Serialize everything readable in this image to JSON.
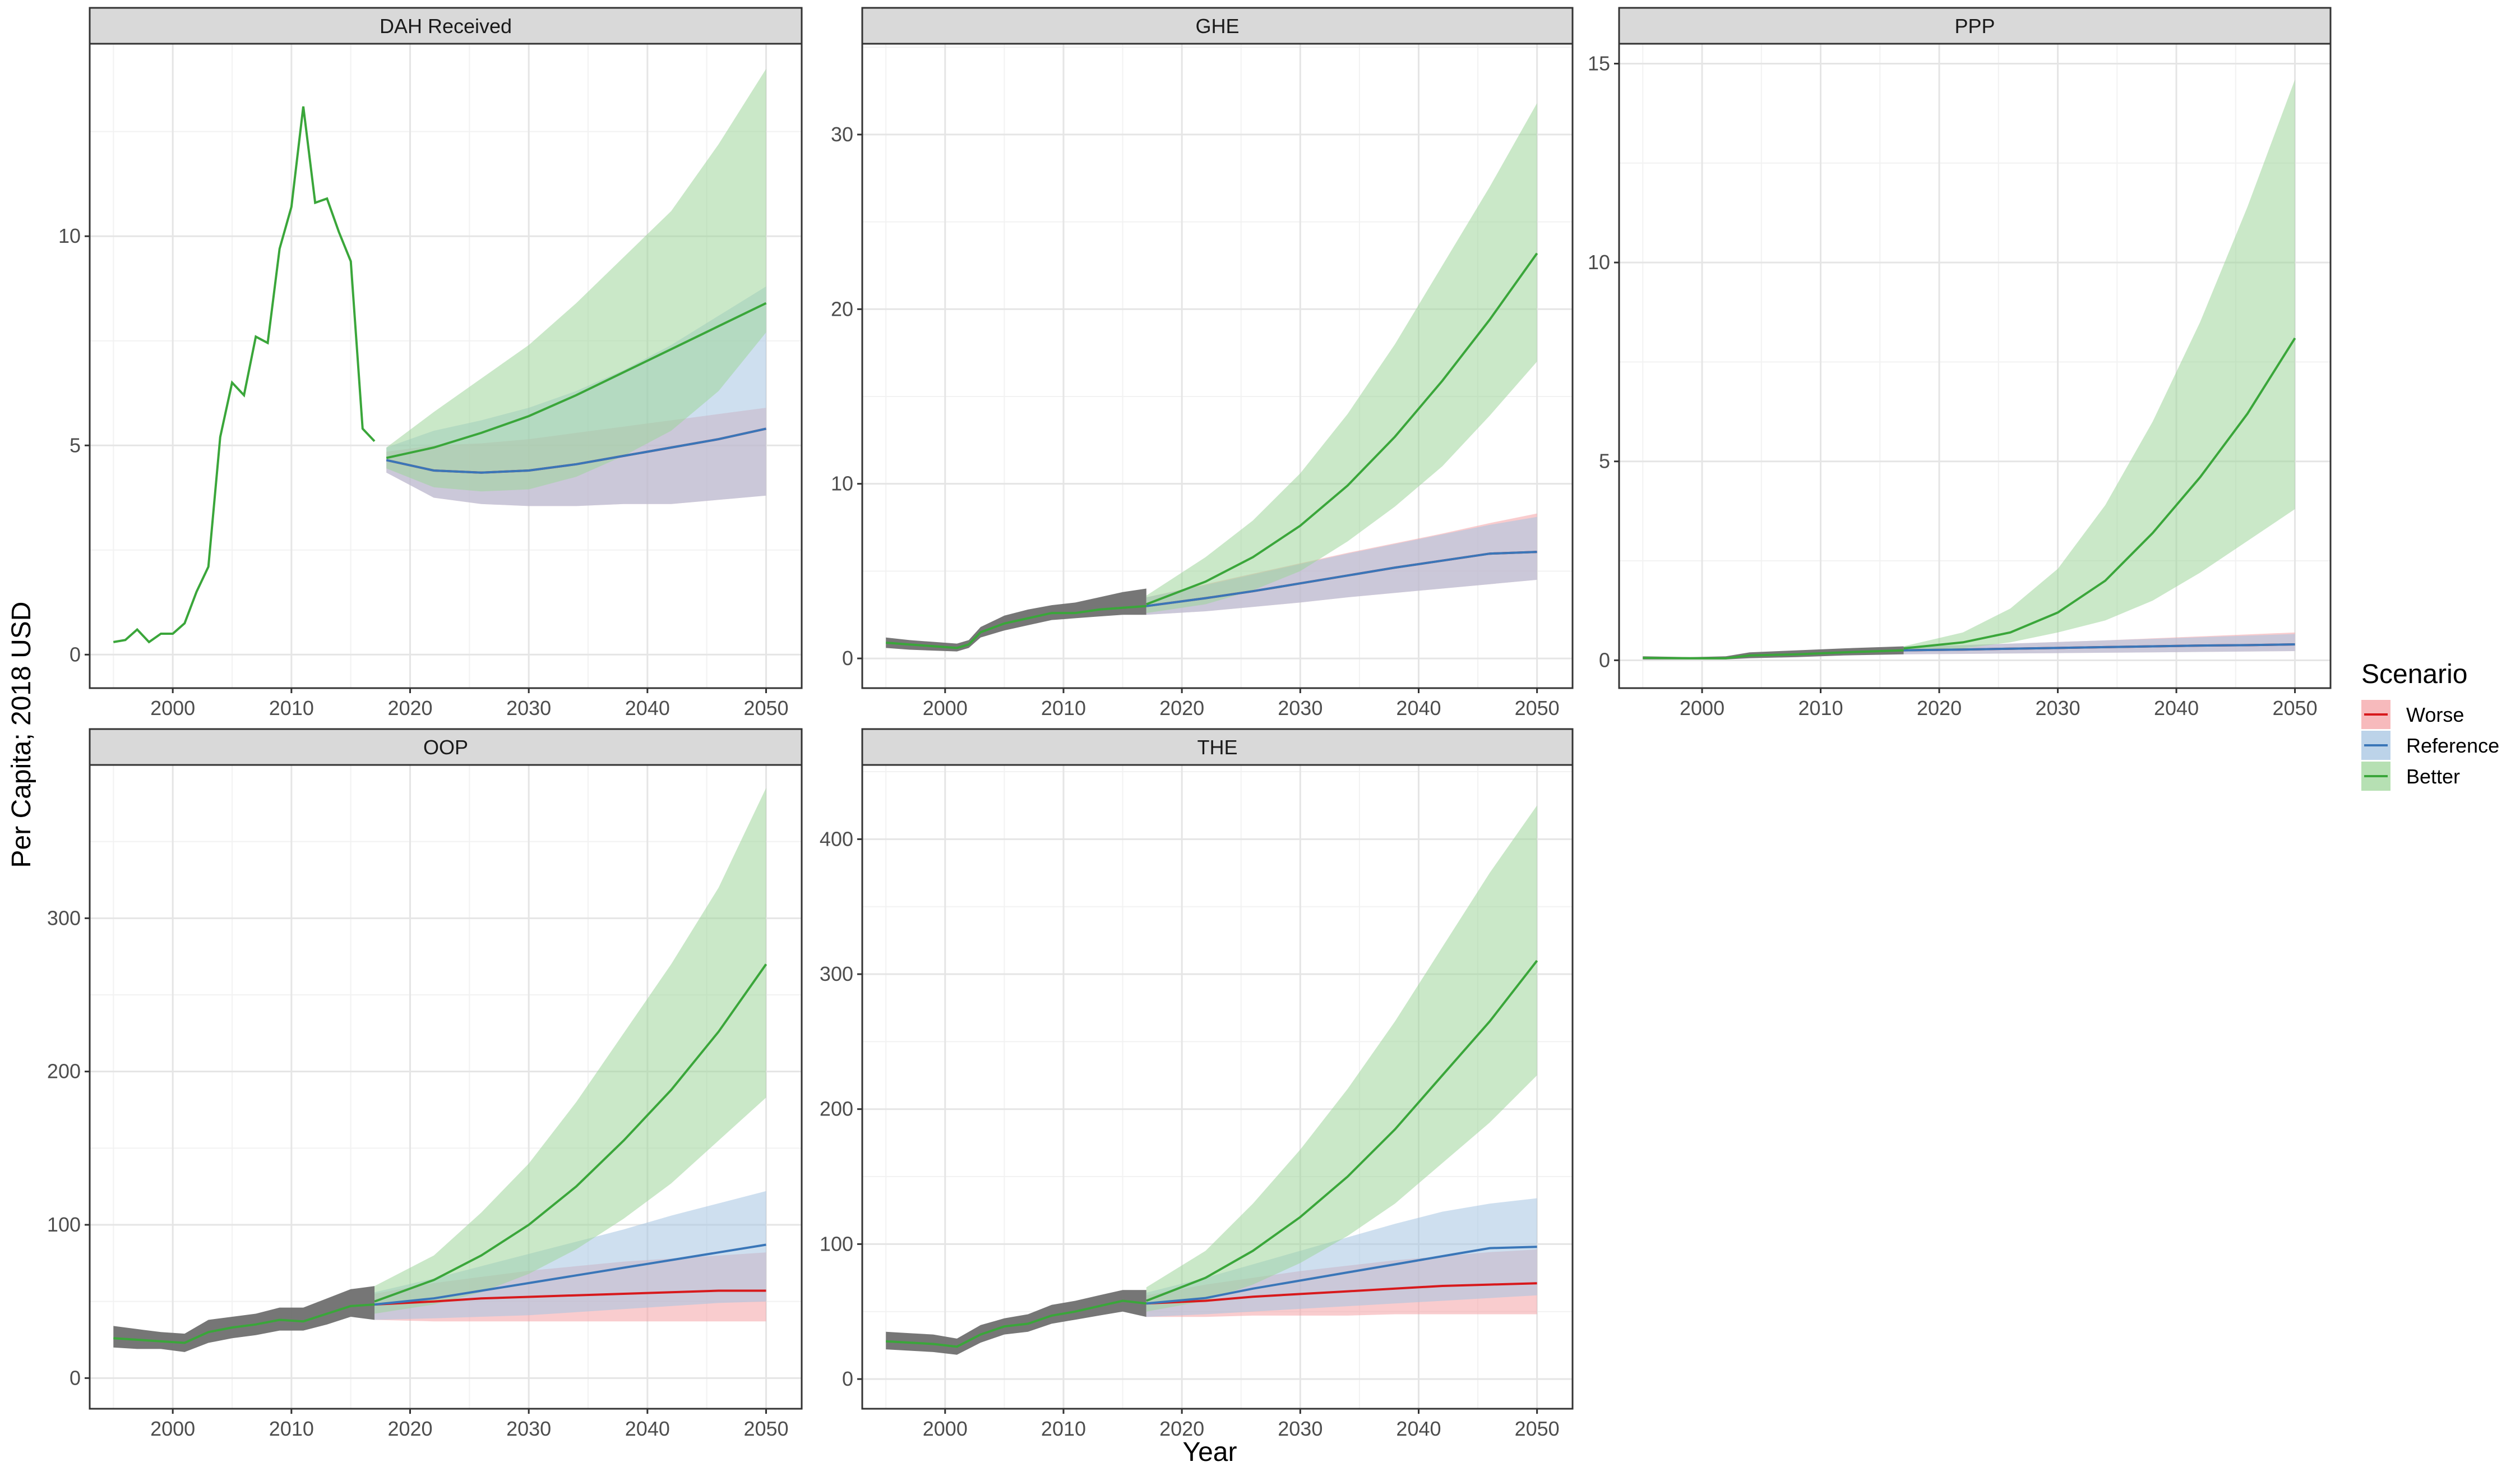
{
  "chart_data": {
    "type": "line",
    "xlabel": "Year",
    "ylabel": "Per Capita; 2018 USD",
    "xlim": [
      1993,
      2053
    ],
    "x_ticks": [
      2000,
      2010,
      2020,
      2030,
      2040,
      2050
    ],
    "legend": {
      "title": "Scenario",
      "position": "right",
      "entries": [
        {
          "name": "Worse",
          "line": "#d7191c",
          "fill": "#f4a3a5"
        },
        {
          "name": "Reference",
          "line": "#3a76b8",
          "fill": "#a6c4e2"
        },
        {
          "name": "Better",
          "line": "#3aa63a",
          "fill": "#9ed69a"
        }
      ]
    },
    "colors": {
      "grey_band": "#6f6f6f",
      "strip_bg": "#d9d9d9"
    },
    "panels": [
      {
        "title": "DAH Received",
        "ylim": [
          -0.8,
          14.6
        ],
        "y_ticks": [
          0,
          5,
          10
        ],
        "history": {
          "x": [
            1995,
            1996,
            1997,
            1998,
            1999,
            2000,
            2001,
            2002,
            2003,
            2004,
            2005,
            2006,
            2007,
            2008,
            2009,
            2010,
            2011,
            2012,
            2013,
            2014,
            2015,
            2016,
            2017
          ],
          "y": [
            0.3,
            0.35,
            0.6,
            0.3,
            0.5,
            0.5,
            0.75,
            1.5,
            2.1,
            5.2,
            6.5,
            6.2,
            7.6,
            7.45,
            9.7,
            10.7,
            13.1,
            10.8,
            10.9,
            10.1,
            9.4,
            5.4,
            5.1
          ]
        },
        "forecast": {
          "x": [
            2018,
            2022,
            2026,
            2030,
            2034,
            2038,
            2042,
            2046,
            2050
          ],
          "Worse": {
            "mean": [
              4.65,
              4.4,
              4.35,
              4.4,
              4.55,
              4.75,
              4.95,
              5.15,
              5.4
            ],
            "lower": [
              4.35,
              3.75,
              3.6,
              3.55,
              3.55,
              3.6,
              3.6,
              3.7,
              3.8
            ],
            "upper": [
              4.85,
              5.0,
              5.05,
              5.15,
              5.3,
              5.45,
              5.6,
              5.75,
              5.9
            ]
          },
          "Reference": {
            "mean": [
              4.65,
              4.4,
              4.35,
              4.4,
              4.55,
              4.75,
              4.95,
              5.15,
              5.4
            ],
            "lower": [
              4.35,
              3.75,
              3.6,
              3.55,
              3.55,
              3.6,
              3.6,
              3.7,
              3.8
            ],
            "upper": [
              4.95,
              5.35,
              5.6,
              5.9,
              6.3,
              6.8,
              7.4,
              8.1,
              8.8
            ]
          },
          "Better": {
            "mean": [
              4.7,
              4.95,
              5.3,
              5.7,
              6.2,
              6.75,
              7.3,
              7.85,
              8.4
            ],
            "lower": [
              4.45,
              4.0,
              3.9,
              3.95,
              4.25,
              4.75,
              5.35,
              6.3,
              7.7
            ],
            "upper": [
              4.95,
              5.8,
              6.6,
              7.4,
              8.4,
              9.5,
              10.6,
              12.2,
              14.0
            ]
          }
        }
      },
      {
        "title": "GHE",
        "ylim": [
          -1.7,
          35.2
        ],
        "y_ticks": [
          0,
          10,
          20,
          30
        ],
        "history": {
          "x": [
            1995,
            1997,
            1999,
            2001,
            2002,
            2003,
            2005,
            2007,
            2009,
            2011,
            2013,
            2015,
            2017
          ],
          "y": [
            0.9,
            0.8,
            0.7,
            0.6,
            0.8,
            1.5,
            2.0,
            2.3,
            2.6,
            2.6,
            2.8,
            2.9,
            3.0
          ],
          "lower": [
            0.6,
            0.5,
            0.45,
            0.4,
            0.6,
            1.2,
            1.6,
            1.9,
            2.2,
            2.3,
            2.4,
            2.5,
            2.5
          ],
          "upper": [
            1.2,
            1.05,
            0.95,
            0.85,
            1.05,
            1.8,
            2.45,
            2.8,
            3.05,
            3.2,
            3.5,
            3.8,
            4.0
          ]
        },
        "forecast": {
          "x": [
            2017,
            2022,
            2026,
            2030,
            2034,
            2038,
            2042,
            2046,
            2050
          ],
          "Worse": {
            "mean": [
              3.0,
              3.45,
              3.85,
              4.3,
              4.75,
              5.2,
              5.6,
              6.0,
              6.1
            ],
            "lower": [
              2.5,
              2.7,
              2.95,
              3.2,
              3.5,
              3.75,
              4.0,
              4.25,
              4.5
            ],
            "upper": [
              3.5,
              4.25,
              4.85,
              5.45,
              6.05,
              6.6,
              7.15,
              7.75,
              8.3
            ]
          },
          "Reference": {
            "mean": [
              3.0,
              3.45,
              3.85,
              4.3,
              4.75,
              5.2,
              5.6,
              6.0,
              6.1
            ],
            "lower": [
              2.5,
              2.7,
              2.95,
              3.2,
              3.5,
              3.75,
              4.0,
              4.25,
              4.5
            ],
            "upper": [
              3.5,
              4.2,
              4.8,
              5.4,
              6.0,
              6.55,
              7.1,
              7.65,
              8.1
            ]
          },
          "Better": {
            "mean": [
              3.1,
              4.4,
              5.8,
              7.6,
              9.9,
              12.7,
              15.9,
              19.4,
              23.2
            ],
            "lower": [
              2.6,
              3.1,
              3.9,
              5.0,
              6.7,
              8.7,
              11.0,
              13.9,
              17.0
            ],
            "upper": [
              3.6,
              5.8,
              7.9,
              10.6,
              14.0,
              18.0,
              22.5,
              27.0,
              31.8
            ]
          }
        }
      },
      {
        "title": "PPP",
        "ylim": [
          -0.7,
          15.5
        ],
        "y_ticks": [
          0,
          5,
          10,
          15
        ],
        "history": {
          "x": [
            1995,
            1999,
            2002,
            2004,
            2008,
            2012,
            2017
          ],
          "y": [
            0.06,
            0.05,
            0.05,
            0.12,
            0.15,
            0.2,
            0.25
          ],
          "lower": [
            0.02,
            0.02,
            0.02,
            0.05,
            0.08,
            0.12,
            0.15
          ],
          "upper": [
            0.1,
            0.08,
            0.1,
            0.2,
            0.25,
            0.3,
            0.35
          ]
        },
        "forecast": {
          "x": [
            2017,
            2022,
            2026,
            2030,
            2034,
            2038,
            2042,
            2046,
            2050
          ],
          "Worse": {
            "mean": [
              0.25,
              0.27,
              0.29,
              0.31,
              0.33,
              0.35,
              0.37,
              0.38,
              0.4
            ],
            "lower": [
              0.15,
              0.16,
              0.17,
              0.18,
              0.19,
              0.2,
              0.21,
              0.22,
              0.23
            ],
            "upper": [
              0.35,
              0.38,
              0.42,
              0.46,
              0.5,
              0.55,
              0.6,
              0.65,
              0.7
            ]
          },
          "Reference": {
            "mean": [
              0.25,
              0.27,
              0.29,
              0.31,
              0.33,
              0.35,
              0.37,
              0.38,
              0.4
            ],
            "lower": [
              0.15,
              0.16,
              0.17,
              0.18,
              0.19,
              0.2,
              0.21,
              0.22,
              0.23
            ],
            "upper": [
              0.35,
              0.38,
              0.42,
              0.46,
              0.5,
              0.54,
              0.58,
              0.62,
              0.66
            ]
          },
          "Better": {
            "mean": [
              0.3,
              0.45,
              0.7,
              1.2,
              2.0,
              3.2,
              4.6,
              6.2,
              8.1
            ],
            "lower": [
              0.25,
              0.3,
              0.45,
              0.7,
              1.0,
              1.5,
              2.2,
              3.0,
              3.8
            ],
            "upper": [
              0.35,
              0.7,
              1.3,
              2.3,
              3.9,
              6.0,
              8.5,
              11.4,
              14.6
            ]
          }
        }
      },
      {
        "title": "OOP",
        "ylim": [
          -20,
          400
        ],
        "y_ticks": [
          0,
          100,
          200,
          300
        ],
        "history": {
          "x": [
            1995,
            1997,
            1999,
            2001,
            2003,
            2005,
            2007,
            2009,
            2011,
            2013,
            2015,
            2017
          ],
          "y": [
            26,
            25,
            24,
            23,
            30,
            33,
            35,
            38,
            37,
            42,
            47,
            48
          ],
          "lower": [
            20,
            19,
            19,
            17,
            23,
            26,
            28,
            31,
            31,
            35,
            40,
            38
          ],
          "upper": [
            34,
            32,
            30,
            29,
            38,
            40,
            42,
            46,
            46,
            52,
            58,
            60
          ]
        },
        "forecast": {
          "x": [
            2017,
            2022,
            2026,
            2030,
            2034,
            2038,
            2042,
            2046,
            2050
          ],
          "Worse": {
            "mean": [
              48,
              50,
              52,
              53,
              54,
              55,
              56,
              57,
              57
            ],
            "lower": [
              38,
              37,
              37,
              37,
              37,
              37,
              37,
              37,
              37
            ],
            "upper": [
              55,
              62,
              66,
              70,
              73,
              76,
              78,
              80,
              82
            ]
          },
          "Reference": {
            "mean": [
              48,
              52,
              57,
              62,
              67,
              72,
              77,
              82,
              87
            ],
            "lower": [
              38,
              39,
              40,
              41,
              43,
              45,
              47,
              49,
              50
            ],
            "upper": [
              56,
              65,
              73,
              81,
              89,
              97,
              106,
              114,
              122
            ]
          },
          "Better": {
            "mean": [
              50,
              64,
              80,
              100,
              125,
              155,
              188,
              226,
              270
            ],
            "lower": [
              42,
              48,
              56,
              68,
              84,
              104,
              127,
              155,
              183
            ],
            "upper": [
              60,
              80,
              108,
              140,
              180,
              225,
              270,
              320,
              385
            ]
          }
        }
      },
      {
        "title": "THE",
        "ylim": [
          -22,
          455
        ],
        "y_ticks": [
          0,
          100,
          200,
          300,
          400
        ],
        "history": {
          "x": [
            1995,
            1997,
            1999,
            2001,
            2003,
            2005,
            2007,
            2009,
            2011,
            2013,
            2015,
            2017
          ],
          "y": [
            28,
            27,
            26,
            24,
            33,
            39,
            41,
            47,
            50,
            54,
            58,
            56
          ],
          "lower": [
            22,
            21,
            20,
            18,
            27,
            33,
            35,
            41,
            44,
            47,
            50,
            46
          ],
          "upper": [
            35,
            34,
            33,
            30,
            40,
            45,
            48,
            55,
            58,
            62,
            66,
            66
          ]
        },
        "forecast": {
          "x": [
            2017,
            2022,
            2026,
            2030,
            2034,
            2038,
            2042,
            2046,
            2050
          ],
          "Worse": {
            "mean": [
              56,
              58,
              61,
              63,
              65,
              67,
              69,
              70,
              71
            ],
            "lower": [
              46,
              46,
              47,
              47,
              47,
              48,
              48,
              48,
              48
            ],
            "upper": [
              62,
              70,
              75,
              80,
              84,
              88,
              91,
              94,
              96
            ]
          },
          "Reference": {
            "mean": [
              56,
              60,
              67,
              73,
              79,
              85,
              91,
              97,
              98
            ],
            "lower": [
              46,
              48,
              50,
              52,
              54,
              56,
              58,
              60,
              62
            ],
            "upper": [
              64,
              75,
              85,
              95,
              105,
              115,
              124,
              130,
              134
            ]
          },
          "Better": {
            "mean": [
              58,
              75,
              95,
              120,
              150,
              185,
              225,
              265,
              310
            ],
            "lower": [
              50,
              58,
              70,
              86,
              106,
              130,
              160,
              190,
              225
            ],
            "upper": [
              68,
              95,
              130,
              170,
              215,
              265,
              320,
              375,
              425
            ]
          }
        }
      }
    ]
  }
}
